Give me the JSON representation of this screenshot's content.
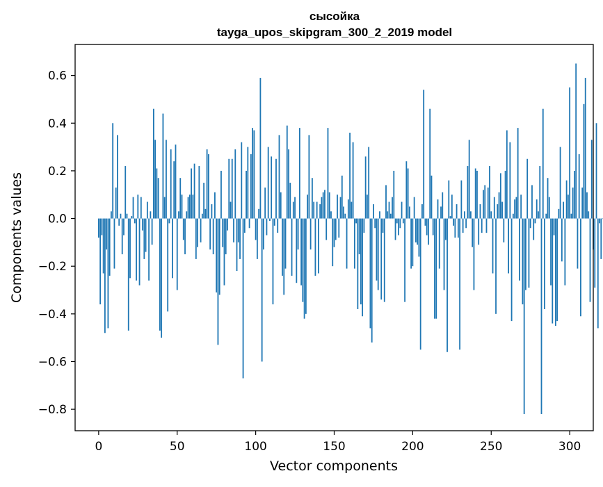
{
  "chart_data": {
    "type": "bar",
    "title_line1": "сысойка",
    "title_line2": "tayga_upos_skipgram_300_2_2019 model",
    "xlabel": "Vector components",
    "ylabel": "Components values",
    "xlim": [
      -15,
      315
    ],
    "ylim": [
      -0.89,
      0.73
    ],
    "x_ticks": [
      0,
      50,
      100,
      150,
      200,
      250,
      300
    ],
    "x_tick_labels": [
      "0",
      "50",
      "100",
      "150",
      "200",
      "250",
      "300"
    ],
    "y_ticks": [
      -0.8,
      -0.6,
      -0.4,
      -0.2,
      0.0,
      0.2,
      0.4,
      0.6
    ],
    "y_tick_labels": [
      "−0.8",
      "−0.6",
      "−0.4",
      "−0.2",
      "0.0",
      "0.2",
      "0.4",
      "0.6"
    ],
    "bar_color": "#1f77b4",
    "grid": false,
    "values": [
      -0.08,
      -0.36,
      -0.07,
      -0.23,
      -0.48,
      -0.13,
      -0.46,
      -0.24,
      0.03,
      0.4,
      -0.21,
      0.13,
      0.35,
      -0.03,
      0.02,
      -0.15,
      -0.07,
      0.22,
      0.02,
      -0.47,
      -0.25,
      0.01,
      0.09,
      -0.02,
      -0.26,
      0.1,
      -0.28,
      0.09,
      -0.05,
      -0.17,
      -0.14,
      0.07,
      -0.26,
      0.03,
      -0.11,
      0.46,
      0.33,
      0.21,
      0.17,
      -0.47,
      -0.5,
      0.44,
      0.09,
      0.33,
      -0.39,
      -0.02,
      0.29,
      -0.25,
      0.24,
      0.31,
      -0.3,
      0.03,
      0.17,
      0.1,
      -0.09,
      -0.15,
      0.03,
      0.09,
      0.1,
      0.21,
      0.1,
      0.23,
      -0.17,
      -0.12,
      0.22,
      -0.1,
      0.02,
      0.15,
      0.04,
      0.29,
      0.27,
      -0.13,
      0.06,
      -0.15,
      0.11,
      -0.31,
      -0.53,
      -0.32,
      0.2,
      -0.12,
      -0.28,
      -0.15,
      -0.05,
      0.25,
      0.07,
      0.25,
      -0.1,
      0.29,
      -0.22,
      -0.1,
      -0.17,
      0.32,
      -0.67,
      -0.06,
      0.2,
      0.3,
      -0.04,
      0.27,
      0.38,
      0.37,
      -0.09,
      -0.17,
      0.04,
      0.59,
      -0.6,
      -0.13,
      0.13,
      -0.07,
      0.3,
      -0.01,
      0.26,
      -0.36,
      -0.03,
      0.25,
      -0.06,
      0.35,
      0.11,
      -0.24,
      -0.32,
      -0.21,
      0.39,
      0.29,
      0.15,
      -0.24,
      0.07,
      0.09,
      -0.27,
      -0.13,
      0.38,
      -0.28,
      -0.35,
      -0.42,
      -0.4,
      0.1,
      0.35,
      -0.13,
      0.17,
      0.07,
      -0.24,
      0.07,
      -0.23,
      0.06,
      0.09,
      0.11,
      0.12,
      -0.09,
      0.38,
      0.11,
      0.03,
      -0.2,
      -0.12,
      -0.09,
      0.1,
      -0.08,
      0.09,
      0.18,
      0.05,
      0.02,
      -0.21,
      0.08,
      0.36,
      0.07,
      0.32,
      -0.21,
      -0.02,
      -0.38,
      -0.15,
      -0.36,
      -0.41,
      -0.06,
      0.26,
      0.1,
      0.3,
      -0.46,
      -0.52,
      0.06,
      -0.04,
      -0.26,
      -0.3,
      0.03,
      -0.34,
      -0.06,
      -0.35,
      0.14,
      0.03,
      0.07,
      0.02,
      0.09,
      0.2,
      -0.09,
      -0.02,
      -0.07,
      -0.04,
      0.07,
      -0.02,
      -0.35,
      0.24,
      0.21,
      0.05,
      -0.21,
      -0.2,
      0.09,
      -0.1,
      -0.11,
      -0.16,
      -0.55,
      0.06,
      0.54,
      -0.03,
      -0.07,
      -0.11,
      0.46,
      0.18,
      -0.07,
      -0.42,
      -0.42,
      0.08,
      -0.21,
      0.05,
      0.11,
      -0.3,
      -0.09,
      -0.56,
      0.16,
      0.01,
      0.1,
      -0.03,
      -0.08,
      0.06,
      -0.08,
      -0.55,
      0.16,
      -0.06,
      0.03,
      -0.04,
      0.22,
      0.33,
      0.03,
      -0.12,
      -0.3,
      0.21,
      0.2,
      -0.11,
      0.06,
      -0.06,
      0.12,
      0.14,
      -0.06,
      0.13,
      0.22,
      0.03,
      -0.23,
      0.09,
      -0.4,
      0.06,
      0.11,
      0.19,
      0.07,
      -0.1,
      0.2,
      0.37,
      -0.23,
      0.32,
      -0.43,
      0.02,
      0.08,
      0.09,
      0.38,
      -0.26,
      0.1,
      -0.36,
      -0.82,
      -0.3,
      0.25,
      -0.29,
      -0.04,
      0.14,
      -0.09,
      -0.02,
      0.08,
      0.03,
      0.22,
      -0.82,
      0.46,
      -0.38,
      0.02,
      0.17,
      0.09,
      -0.28,
      -0.44,
      -0.07,
      -0.45,
      -0.43,
      0.04,
      0.3,
      -0.18,
      0.07,
      -0.28,
      0.16,
      0.1,
      0.55,
      0.02,
      0.13,
      0.2,
      0.65,
      -0.21,
      0.27,
      -0.41,
      0.13,
      0.48,
      0.59,
      0.11,
      0.03,
      -0.35,
      0.33,
      -0.13,
      -0.29,
      0.4,
      -0.46,
      -0.02,
      -0.17,
      0.0
    ]
  }
}
